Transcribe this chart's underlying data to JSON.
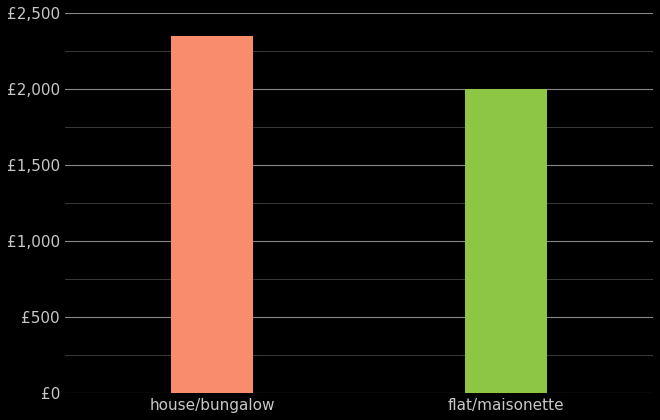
{
  "categories": [
    "house/bungalow",
    "flat/maisonette"
  ],
  "values": [
    2350,
    2000
  ],
  "bar_colors": [
    "#FA8C6E",
    "#8DC644"
  ],
  "background_color": "#000000",
  "text_color": "#c8c8c8",
  "grid_color_major": "#888888",
  "grid_color_minor": "#444444",
  "ylim": [
    0,
    2500
  ],
  "yticks_major": [
    0,
    500,
    1000,
    1500,
    2000,
    2500
  ],
  "ytick_labels": [
    "£0",
    "£500",
    "£1,000",
    "£1,500",
    "£2,000",
    "£2,500"
  ],
  "yticks_minor": [
    250,
    750,
    1250,
    1750,
    2250
  ],
  "bar_width": 0.28,
  "x_positions": [
    1,
    2
  ],
  "xlim": [
    0.5,
    2.5
  ],
  "xlabel_fontsize": 11,
  "tick_fontsize": 11
}
